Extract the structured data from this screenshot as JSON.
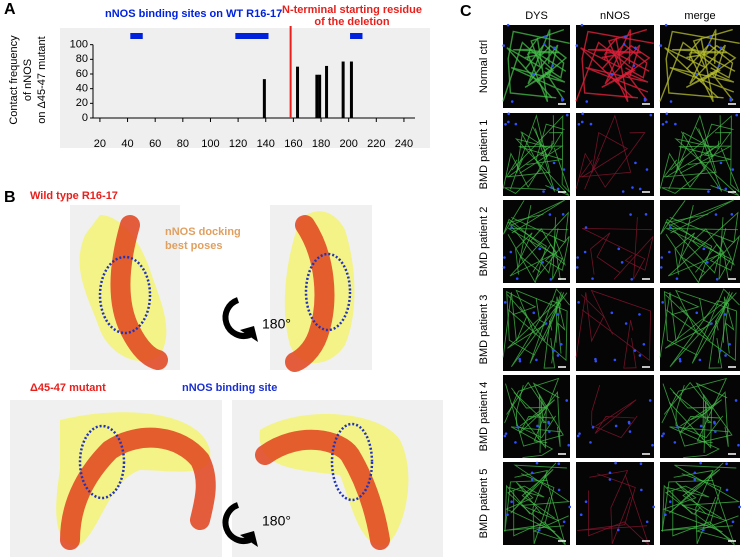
{
  "panel_letters": {
    "a": "A",
    "b": "B",
    "c": "C"
  },
  "chart_data": {
    "type": "bar",
    "binding_sites_label": "nNOS binding sites on WT R16-17",
    "binding_sites": [
      [
        42,
        51
      ],
      [
        118,
        142
      ],
      [
        201,
        210
      ]
    ],
    "binding_sites_color": "#0022dd",
    "deletion_label": [
      "N-terminal starting residue",
      "of the deletion"
    ],
    "deletion_start": 158,
    "deletion_color": "#e8201c",
    "ylabel": [
      "Contact frequency",
      "of nNOS",
      "on Δ45-47 mutant"
    ],
    "x": [
      139,
      163,
      177,
      179,
      184,
      196,
      202
    ],
    "values": [
      53,
      70,
      59,
      59,
      71,
      77,
      77
    ],
    "color": "#000000",
    "xlim": [
      15,
      248
    ],
    "xticks": [
      20,
      40,
      60,
      80,
      100,
      120,
      140,
      160,
      180,
      200,
      220,
      240
    ],
    "ylim": [
      0,
      120
    ],
    "yticks": [
      0,
      20,
      40,
      60,
      80,
      100
    ]
  },
  "panel_b": {
    "wild_type": "Wild type R16-17",
    "docking": [
      "nNOS docking",
      "best poses"
    ],
    "rotation": "180°",
    "mutant": "Δ45-47 mutant",
    "binding_site": "nNOS binding site"
  },
  "panel_c": {
    "columns": [
      "DYS",
      "nNOS",
      "merge"
    ],
    "rows": [
      "Normal ctrl",
      "BMD patient 1",
      "BMD patient 2",
      "BMD patient 3",
      "BMD patient 4",
      "BMD patient 5"
    ]
  }
}
